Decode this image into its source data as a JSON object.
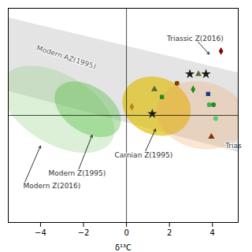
{
  "chart_data": {
    "type": "scatter",
    "xlabel": "δ¹³C",
    "xlim": [
      -5.5,
      5.2
    ],
    "ylim": [
      -3.5,
      3.5
    ],
    "xticks": [
      -4,
      -2,
      0,
      2,
      4
    ],
    "tick_labels": "x",
    "rules": {
      "x": [
        0
      ],
      "y": [
        0
      ]
    },
    "band": {
      "color": "#d8d8d8",
      "x": [
        -5.5,
        5.2,
        5.2,
        -5.5
      ],
      "y": [
        0.8,
        -1.2,
        1.4,
        3.2
      ]
    },
    "ellipses": [
      {
        "cx": -3.2,
        "cy": 0.2,
        "width": 5.5,
        "height": 2.4,
        "angle": -18,
        "color": "#88cc77"
      },
      {
        "cx": -1.8,
        "cy": 0.2,
        "width": 3.2,
        "height": 1.6,
        "angle": -18,
        "color": "#55bb44"
      },
      {
        "cx": 1.4,
        "cy": 0.3,
        "width": 3.2,
        "height": 1.9,
        "angle": -8,
        "color": "#ddbb00"
      },
      {
        "cx": 3.5,
        "cy": 0.0,
        "width": 4.2,
        "height": 2.2,
        "angle": -5,
        "color": "#f0a060"
      }
    ],
    "points": [
      {
        "x": 0.25,
        "y": 0.28,
        "marker": "diamond",
        "color": "#b8860b"
      },
      {
        "x": 1.3,
        "y": 0.85,
        "marker": "triangle",
        "color": "#556b2f"
      },
      {
        "x": 1.2,
        "y": 0.05,
        "marker": "star",
        "color": "#1a1a1a"
      },
      {
        "x": 1.65,
        "y": 0.6,
        "marker": "square",
        "color": "#228b22"
      },
      {
        "x": 2.35,
        "y": 1.05,
        "marker": "circle",
        "color": "#8b3a00"
      },
      {
        "x": 2.95,
        "y": 1.35,
        "marker": "star",
        "color": "#1a1a1a"
      },
      {
        "x": 3.1,
        "y": 0.85,
        "marker": "diamond",
        "color": "#228b22"
      },
      {
        "x": 3.35,
        "y": 1.35,
        "marker": "triangle",
        "color": "#556b2f"
      },
      {
        "x": 3.7,
        "y": 1.35,
        "marker": "star",
        "color": "#1a1a1a"
      },
      {
        "x": 3.8,
        "y": 0.7,
        "marker": "square",
        "color": "#1a3a7a"
      },
      {
        "x": 3.85,
        "y": 0.35,
        "marker": "circle",
        "color": "#44aa55"
      },
      {
        "x": 4.05,
        "y": 0.35,
        "marker": "circle",
        "color": "#228b22"
      },
      {
        "x": 4.15,
        "y": -0.1,
        "marker": "circle",
        "color": "#55cc77"
      },
      {
        "x": 3.95,
        "y": -0.7,
        "marker": "triangle",
        "color": "#7a3000"
      },
      {
        "x": 4.4,
        "y": 2.1,
        "marker": "diamond",
        "color": "#8b0000"
      }
    ],
    "annotations": [
      {
        "text": "Modern AZ(1995)",
        "x": -2.8,
        "y": 1.9
      },
      {
        "text": "Triassic Z(2016)",
        "x": 3.2,
        "y": 2.5,
        "arrow_x": 3.85,
        "arrow_y": 2.0
      },
      {
        "text": "Carnian Z(1995)",
        "x": 0.8,
        "y": -1.3,
        "arrow_x": 1.35,
        "arrow_y": -0.45
      },
      {
        "text": "Modern Z(1995)",
        "x": -2.3,
        "y": -1.9,
        "arrow_x": -1.6,
        "arrow_y": -0.65
      },
      {
        "text": "Modern Z(2016)",
        "x": -4.8,
        "y": -2.3,
        "arrow_x": -4.0,
        "arrow_y": -1.0
      },
      {
        "text": "Trias",
        "x": 4.6,
        "y": -1.0
      }
    ]
  }
}
